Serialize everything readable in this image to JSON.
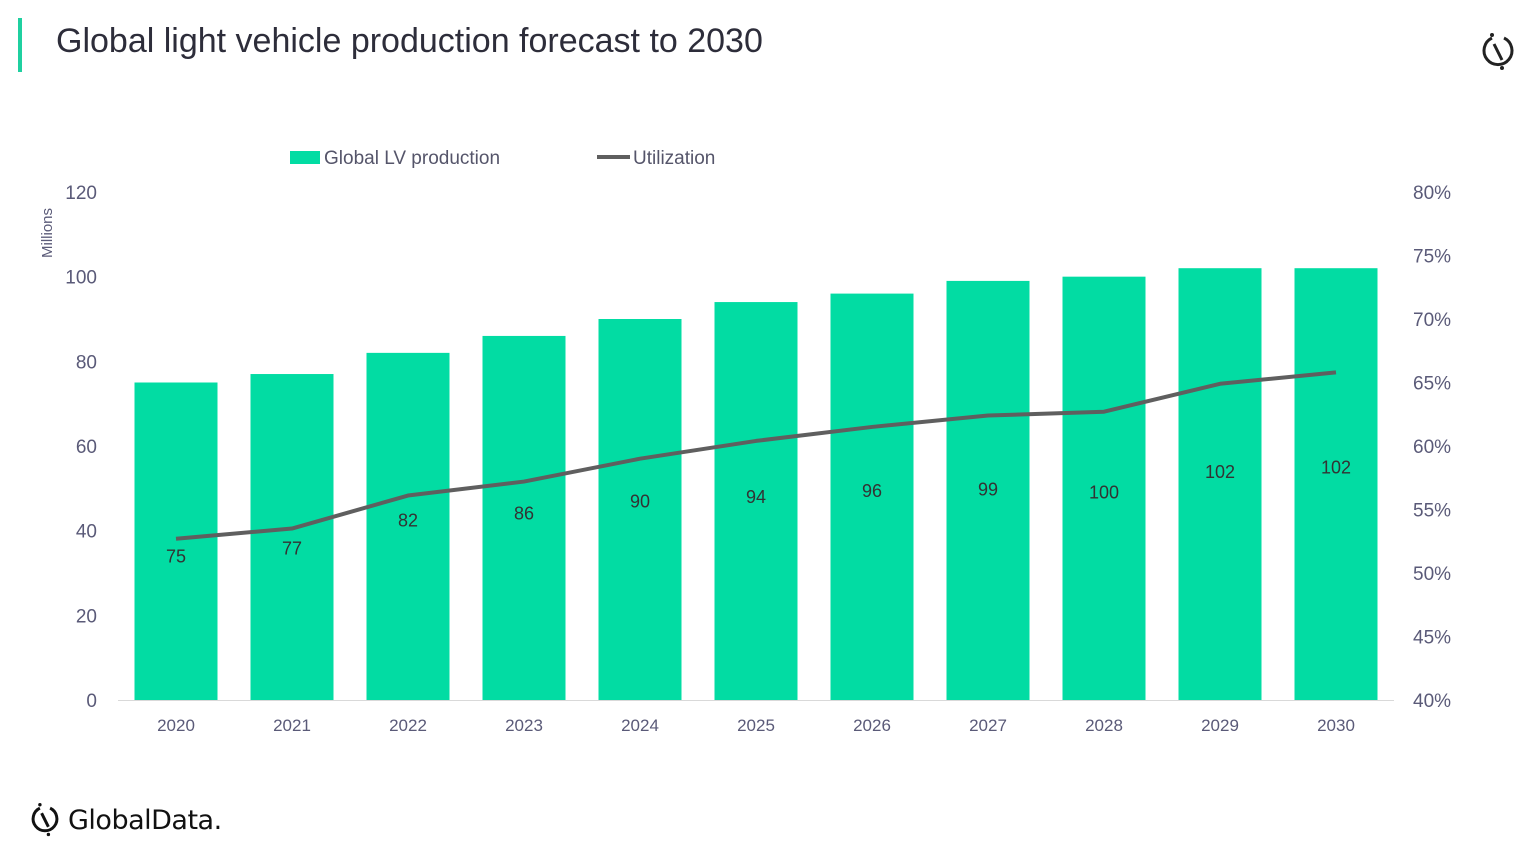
{
  "header": {
    "title": "Global light vehicle production forecast to 2030",
    "icon": "globaldata-mark-icon"
  },
  "footer": {
    "logo_text": "GlobalData."
  },
  "colors": {
    "bar": "#02dca3",
    "line": "#5f5f5f",
    "accent": "#1fd0a0",
    "axis_text": "#5a5a78"
  },
  "chart_data": {
    "type": "bar+line",
    "title": "Global light vehicle production forecast to 2030",
    "categories": [
      "2020",
      "2021",
      "2022",
      "2023",
      "2024",
      "2025",
      "2026",
      "2027",
      "2028",
      "2029",
      "2030"
    ],
    "series": [
      {
        "name": "Global LV production",
        "type": "bar",
        "axis": "left",
        "values": [
          75,
          77,
          82,
          86,
          90,
          94,
          96,
          99,
          100,
          102,
          102
        ],
        "data_labels": [
          "75",
          "77",
          "82",
          "86",
          "90",
          "94",
          "96",
          "99",
          "100",
          "102",
          "102"
        ]
      },
      {
        "name": "Utilization",
        "type": "line",
        "axis": "right",
        "values": [
          52.7,
          53.5,
          56.1,
          57.2,
          59.0,
          60.4,
          61.5,
          62.4,
          62.7,
          64.9,
          65.8
        ]
      }
    ],
    "ylabel": "Millions",
    "ylim": [
      0,
      120
    ],
    "yticks": [
      "0",
      "20",
      "40",
      "60",
      "80",
      "100",
      "120"
    ],
    "y2lim": [
      40,
      80
    ],
    "y2ticks": [
      "40%",
      "45%",
      "50%",
      "55%",
      "60%",
      "65%",
      "70%",
      "75%",
      "80%"
    ],
    "grid": false,
    "legend": "top"
  }
}
